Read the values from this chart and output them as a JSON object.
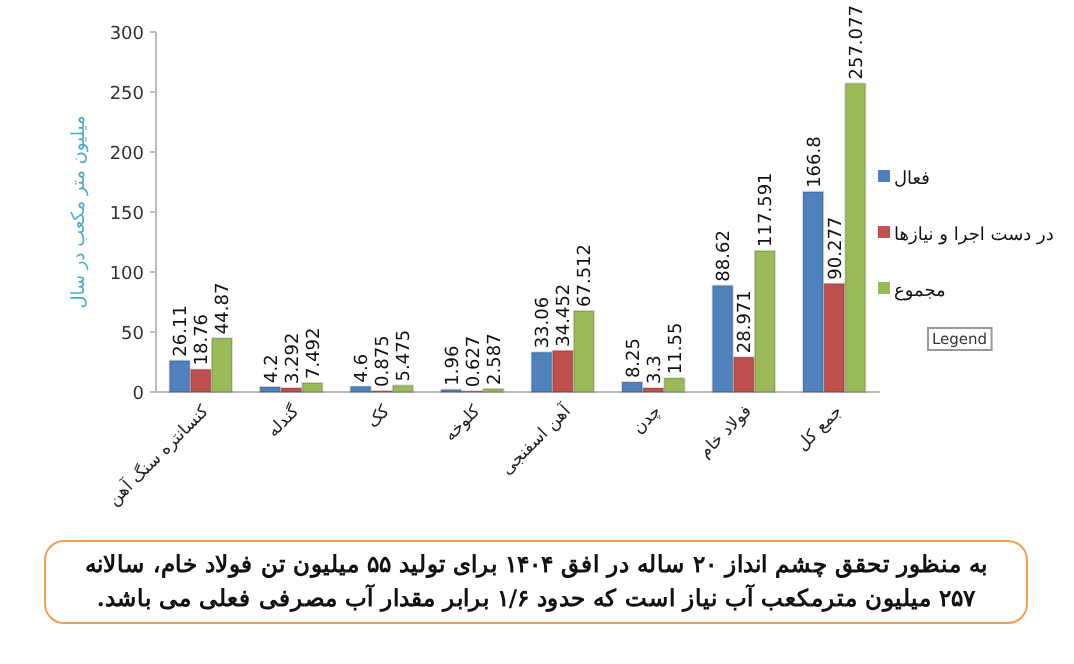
{
  "chart_data": {
    "type": "bar",
    "ylabel": "میلیون متر مکعب در سال",
    "categories": [
      "کنسانتره سنگ آهن",
      "گندله",
      "کک",
      "کلوخه",
      "آهن اسفنجی",
      "چدن",
      "فولاد خام",
      "جمع کل"
    ],
    "series": [
      {
        "name": "فعال",
        "color": "#4f81bd",
        "values": [
          26.11,
          4.2,
          4.6,
          1.96,
          33.06,
          8.25,
          88.62,
          166.8
        ]
      },
      {
        "name": "در دست اجرا و نیازها",
        "color": "#c0504d",
        "values": [
          18.76,
          3.292,
          0.875,
          0.627,
          34.452,
          3.3,
          28.971,
          90.277
        ]
      },
      {
        "name": "مجموع",
        "color": "#9bbb59",
        "values": [
          44.87,
          7.492,
          5.475,
          2.587,
          67.512,
          11.55,
          117.591,
          257.077
        ]
      }
    ],
    "ylim": [
      0,
      300
    ],
    "yticks": [
      0,
      50,
      100,
      150,
      200,
      250,
      300
    ],
    "data_labels": true,
    "legend": "right",
    "annotations": [
      "Legend",
      "به منظور تحقق چشم  انداز ۲۰ ساله در افق ۱۴۰۴ برای تولید ۵۵ میلیون تن فولاد خام، سالانه ۲۵۷ میلیون مترمکعب آب نیاز است که حدود ۱/۶ برابر مقدار آب مصرفی فعلی می باشد."
    ]
  }
}
